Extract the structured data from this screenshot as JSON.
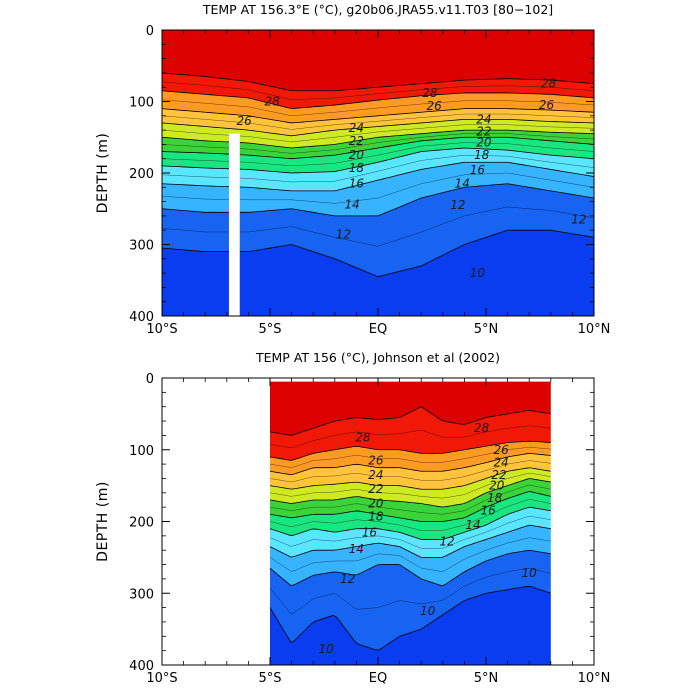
{
  "chart_data": [
    {
      "type": "heatmap",
      "title": "TEMP AT 156.3°E (°C), g20b06.JRA55.v11.T03 [80−102]",
      "ylabel": "DEPTH (m)",
      "xlabel": "",
      "xlim": [
        -10,
        10
      ],
      "ylim": [
        400,
        0
      ],
      "xticks": [
        "10°S",
        "5°S",
        "EQ",
        "5°N",
        "10°N"
      ],
      "yticks": [
        "0",
        "100",
        "200",
        "300",
        "400"
      ],
      "x": [
        -10,
        -8,
        -6,
        -4,
        -2,
        0,
        2,
        4,
        6,
        8,
        10
      ],
      "levels": [
        28,
        26,
        24,
        22,
        20,
        18,
        16,
        14,
        12,
        10
      ],
      "contours": [
        {
          "level": 28,
          "depths": [
            60,
            65,
            72,
            85,
            85,
            80,
            75,
            70,
            68,
            70,
            75
          ]
        },
        {
          "level": 26,
          "depths": [
            85,
            90,
            95,
            110,
            105,
            98,
            92,
            88,
            88,
            90,
            95
          ]
        },
        {
          "level": 24,
          "depths": [
            110,
            115,
            120,
            130,
            125,
            120,
            115,
            110,
            110,
            112,
            115
          ]
        },
        {
          "level": 22,
          "depths": [
            130,
            135,
            140,
            148,
            140,
            135,
            130,
            125,
            125,
            128,
            130
          ]
        },
        {
          "level": 20,
          "depths": [
            150,
            155,
            158,
            165,
            160,
            150,
            145,
            140,
            140,
            143,
            145
          ]
        },
        {
          "level": 18,
          "depths": [
            170,
            172,
            175,
            180,
            175,
            165,
            155,
            150,
            150,
            155,
            160
          ]
        },
        {
          "level": 16,
          "depths": [
            190,
            193,
            195,
            200,
            198,
            185,
            170,
            165,
            168,
            175,
            180
          ]
        },
        {
          "level": 14,
          "depths": [
            215,
            218,
            220,
            225,
            225,
            210,
            195,
            185,
            185,
            195,
            205
          ]
        },
        {
          "level": 12,
          "depths": [
            250,
            255,
            255,
            250,
            260,
            260,
            235,
            220,
            215,
            225,
            235
          ]
        },
        {
          "level": 10,
          "depths": [
            305,
            310,
            310,
            300,
            320,
            345,
            330,
            300,
            280,
            280,
            290
          ]
        }
      ],
      "gap": {
        "x_start": -6.9,
        "x_end": -6.4,
        "depth_start": 145,
        "depth_end": 400
      },
      "colors": [
        "#dd0000",
        "#f21808",
        "#ff6600",
        "#ff9a22",
        "#ffc43c",
        "#ffea40",
        "#cfea22",
        "#3ad43a",
        "#19e680",
        "#22f2d0",
        "#5ae6ff",
        "#36b4ff",
        "#2f86ee",
        "#1764f2",
        "#0a3cf0"
      ],
      "contour_labels": [
        {
          "text": "28",
          "x": 2.4,
          "y": 88
        },
        {
          "text": "28",
          "x": 7.9,
          "y": 75
        },
        {
          "text": "28",
          "x": -4.9,
          "y": 100
        },
        {
          "text": "26",
          "x": -6.2,
          "y": 127
        },
        {
          "text": "26",
          "x": 2.6,
          "y": 106
        },
        {
          "text": "26",
          "x": 7.8,
          "y": 105
        },
        {
          "text": "24",
          "x": -1.0,
          "y": 137
        },
        {
          "text": "24",
          "x": 4.9,
          "y": 125
        },
        {
          "text": "22",
          "x": -1.0,
          "y": 155
        },
        {
          "text": "22",
          "x": 4.9,
          "y": 142
        },
        {
          "text": "20",
          "x": -1.0,
          "y": 175
        },
        {
          "text": "20",
          "x": 4.9,
          "y": 157
        },
        {
          "text": "18",
          "x": -1.0,
          "y": 193
        },
        {
          "text": "18",
          "x": 4.8,
          "y": 175
        },
        {
          "text": "16",
          "x": -1.0,
          "y": 215
        },
        {
          "text": "16",
          "x": 4.6,
          "y": 196
        },
        {
          "text": "14",
          "x": -1.2,
          "y": 244
        },
        {
          "text": "14",
          "x": 3.9,
          "y": 215
        },
        {
          "text": "12",
          "x": -1.6,
          "y": 286
        },
        {
          "text": "12",
          "x": 3.7,
          "y": 245
        },
        {
          "text": "12",
          "x": 9.3,
          "y": 265
        },
        {
          "text": "10",
          "x": 4.6,
          "y": 340
        }
      ]
    },
    {
      "type": "heatmap",
      "title": "TEMP AT 156 (°C), Johnson et al (2002)",
      "ylabel": "DEPTH (m)",
      "xlabel": "",
      "xlim": [
        -10,
        10
      ],
      "ylim": [
        400,
        0
      ],
      "xticks": [
        "10°S",
        "5°S",
        "EQ",
        "5°N",
        "10°N"
      ],
      "yticks": [
        "0",
        "100",
        "200",
        "300",
        "400"
      ],
      "data_extent": {
        "x_start": -5,
        "x_end": 8,
        "depth_top": 5
      },
      "x": [
        -5,
        -4,
        -3,
        -2,
        -1,
        0,
        1,
        2,
        3,
        4,
        5,
        6,
        7,
        8
      ],
      "levels": [
        28,
        26,
        24,
        22,
        20,
        18,
        16,
        14,
        12,
        10
      ],
      "contours": [
        {
          "level": 28,
          "depths": [
            75,
            80,
            70,
            60,
            55,
            58,
            55,
            40,
            60,
            65,
            55,
            50,
            45,
            50
          ]
        },
        {
          "level": 26,
          "depths": [
            110,
            115,
            105,
            100,
            95,
            100,
            100,
            105,
            105,
            100,
            95,
            90,
            88,
            90
          ]
        },
        {
          "level": 24,
          "depths": [
            130,
            135,
            125,
            125,
            120,
            125,
            125,
            130,
            130,
            125,
            118,
            110,
            105,
            108
          ]
        },
        {
          "level": 22,
          "depths": [
            150,
            155,
            150,
            148,
            145,
            150,
            150,
            155,
            155,
            150,
            140,
            130,
            125,
            130
          ]
        },
        {
          "level": 20,
          "depths": [
            170,
            175,
            170,
            170,
            165,
            170,
            172,
            175,
            180,
            175,
            160,
            150,
            140,
            145
          ]
        },
        {
          "level": 18,
          "depths": [
            190,
            195,
            190,
            190,
            185,
            190,
            195,
            200,
            200,
            195,
            180,
            168,
            158,
            165
          ]
        },
        {
          "level": 16,
          "depths": [
            210,
            220,
            210,
            215,
            210,
            210,
            215,
            225,
            225,
            215,
            205,
            190,
            180,
            185
          ]
        },
        {
          "level": 14,
          "depths": [
            235,
            250,
            240,
            240,
            235,
            230,
            235,
            250,
            250,
            235,
            225,
            215,
            205,
            210
          ]
        },
        {
          "level": 12,
          "depths": [
            265,
            290,
            275,
            270,
            275,
            260,
            260,
            280,
            290,
            270,
            255,
            245,
            240,
            245
          ]
        },
        {
          "level": 10,
          "depths": [
            320,
            370,
            340,
            330,
            370,
            380,
            360,
            350,
            330,
            310,
            300,
            295,
            290,
            300
          ]
        }
      ],
      "colors": [
        "#dd0000",
        "#f21808",
        "#ff6600",
        "#ff9a22",
        "#ffc43c",
        "#ffea40",
        "#cfea22",
        "#3ad43a",
        "#19e680",
        "#22f2d0",
        "#5ae6ff",
        "#36b4ff",
        "#2f86ee",
        "#1764f2",
        "#0a3cf0"
      ],
      "contour_labels": [
        {
          "text": "28",
          "x": -0.7,
          "y": 83
        },
        {
          "text": "28",
          "x": 4.8,
          "y": 70
        },
        {
          "text": "26",
          "x": -0.1,
          "y": 115
        },
        {
          "text": "26",
          "x": 5.7,
          "y": 100
        },
        {
          "text": "24",
          "x": -0.1,
          "y": 135
        },
        {
          "text": "24",
          "x": 5.7,
          "y": 118
        },
        {
          "text": "22",
          "x": -0.1,
          "y": 155
        },
        {
          "text": "22",
          "x": 5.6,
          "y": 135
        },
        {
          "text": "20",
          "x": -0.1,
          "y": 175
        },
        {
          "text": "20",
          "x": 5.5,
          "y": 150
        },
        {
          "text": "18",
          "x": -0.1,
          "y": 193
        },
        {
          "text": "18",
          "x": 5.4,
          "y": 167
        },
        {
          "text": "16",
          "x": -0.4,
          "y": 215
        },
        {
          "text": "16",
          "x": 5.1,
          "y": 185
        },
        {
          "text": "14",
          "x": -1.0,
          "y": 238
        },
        {
          "text": "14",
          "x": 4.4,
          "y": 205
        },
        {
          "text": "12",
          "x": 3.2,
          "y": 228
        },
        {
          "text": "12",
          "x": -1.4,
          "y": 280
        },
        {
          "text": "10",
          "x": 7.0,
          "y": 272
        },
        {
          "text": "10",
          "x": 2.3,
          "y": 325
        },
        {
          "text": "10",
          "x": -2.4,
          "y": 378
        }
      ]
    }
  ]
}
